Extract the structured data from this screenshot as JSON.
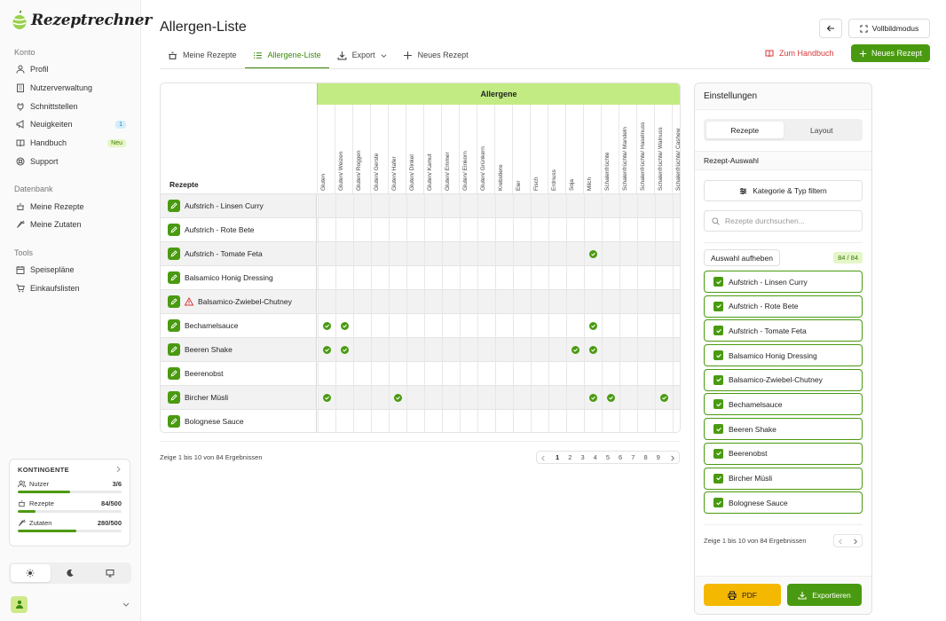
{
  "app": {
    "logo_text": "Rezeptrechner"
  },
  "sidebar": {
    "sections": [
      {
        "label": "Konto",
        "items": [
          {
            "label": "Profil",
            "icon": "user-icon"
          },
          {
            "label": "Nutzerverwaltung",
            "icon": "building-icon"
          },
          {
            "label": "Schnittstellen",
            "icon": "plug-icon"
          },
          {
            "label": "Neuigkeiten",
            "icon": "megaphone-icon",
            "badge": "1"
          },
          {
            "label": "Handbuch",
            "icon": "book-icon",
            "badge": "Neu"
          },
          {
            "label": "Support",
            "icon": "lifebuoy-icon"
          }
        ]
      },
      {
        "label": "Datenbank",
        "items": [
          {
            "label": "Meine Rezepte",
            "icon": "pot-icon"
          },
          {
            "label": "Meine Zutaten",
            "icon": "carrot-icon"
          }
        ]
      },
      {
        "label": "Tools",
        "items": [
          {
            "label": "Speisepläne",
            "icon": "calendar-icon"
          },
          {
            "label": "Einkaufslisten",
            "icon": "cart-icon"
          }
        ]
      }
    ],
    "quota": {
      "title": "KONTINGENTE",
      "rows": [
        {
          "label": "Nutzer",
          "value": "3/6",
          "fraction": 0.5
        },
        {
          "label": "Rezepte",
          "value": "84/500",
          "fraction": 0.168
        },
        {
          "label": "Zutaten",
          "value": "280/500",
          "fraction": 0.56
        }
      ]
    },
    "theme": {
      "options": [
        "sun-icon",
        "moon-icon",
        "monitor-icon"
      ],
      "active": 0
    }
  },
  "page": {
    "title": "Allergen-Liste",
    "tabs": [
      {
        "label": "Meine Rezepte",
        "icon": "pot-icon"
      },
      {
        "label": "Allergene-Liste",
        "icon": "list-icon",
        "active": true
      },
      {
        "label": "Export",
        "icon": "download-icon",
        "dropdown": true
      },
      {
        "label": "Neues Rezept",
        "icon": "plus-icon"
      }
    ],
    "fullscreen_label": "Vollbildmodus",
    "handbook_label": "Zum Handbuch",
    "new_recipe_label": "Neues Rezept"
  },
  "table": {
    "group_header": "Allergene",
    "recipes_header": "Rezepte",
    "columns": [
      "Gluten",
      "Gluten/ Weizen",
      "Gluten/ Roggen",
      "Gluten/ Gerste",
      "Gluten/ Hafer",
      "Gluten/ Dinkel",
      "Gluten/ Kamut",
      "Gluten/ Emmer",
      "Gluten/ Einkorn",
      "Gluten/ Grünkern",
      "Krebstiere",
      "Eier",
      "Fisch",
      "Erdnuss",
      "Soja",
      "Milch",
      "Schalenfrüchte",
      "Schalenfrüchte/ Mandeln",
      "Schalenfrüchte/ Haselnuss",
      "Schalenfrüchte/ Walnuss",
      "Schalenfrüchte/ Cashew"
    ],
    "rows": [
      {
        "name": "Aufstrich - Linsen Curry",
        "checks": []
      },
      {
        "name": "Aufstrich - Rote Bete",
        "checks": []
      },
      {
        "name": "Aufstrich - Tomate Feta",
        "checks": [
          15
        ]
      },
      {
        "name": "Balsamico Honig Dressing",
        "checks": []
      },
      {
        "name": "Balsamico-Zwiebel-Chutney",
        "checks": [],
        "warning": true
      },
      {
        "name": "Bechamelsauce",
        "checks": [
          0,
          1,
          15
        ]
      },
      {
        "name": "Beeren Shake",
        "checks": [
          0,
          1,
          14,
          15
        ]
      },
      {
        "name": "Beerenobst",
        "checks": []
      },
      {
        "name": "Bircher Müsli",
        "checks": [
          0,
          4,
          15,
          16,
          19
        ]
      },
      {
        "name": "Bolognese Sauce",
        "checks": []
      }
    ],
    "results_text": "Zeige 1 bis 10 von 84 Ergebnissen",
    "pages": [
      "1",
      "2",
      "3",
      "4",
      "5",
      "6",
      "7",
      "8",
      "9"
    ],
    "active_page": "1"
  },
  "settings": {
    "title": "Einstellungen",
    "segments": [
      "Rezepte",
      "Layout"
    ],
    "active_segment": 0,
    "section_label": "Rezept-Auswahl",
    "filter_label": "Kategorie & Typ filtern",
    "search_placeholder": "Rezepte durchsuchen...",
    "deselect_label": "Auswahl aufheben",
    "count": "84 / 84",
    "selected": [
      "Aufstrich - Linsen Curry",
      "Aufstrich - Rote Bete",
      "Aufstrich - Tomate Feta",
      "Balsamico Honig Dressing",
      "Balsamico-Zwiebel-Chutney",
      "Bechamelsauce",
      "Beeren Shake",
      "Beerenobst",
      "Bircher Müsli",
      "Bolognese Sauce"
    ],
    "results_text": "Zeige 1 bis 10 von 84 Ergebnissen",
    "pdf_label": "PDF",
    "export_label": "Exportieren"
  },
  "colors": {
    "accent": "#4a9a11",
    "header_green": "#c2ec83",
    "danger": "#d63a3a",
    "pdf": "#f5b800"
  }
}
